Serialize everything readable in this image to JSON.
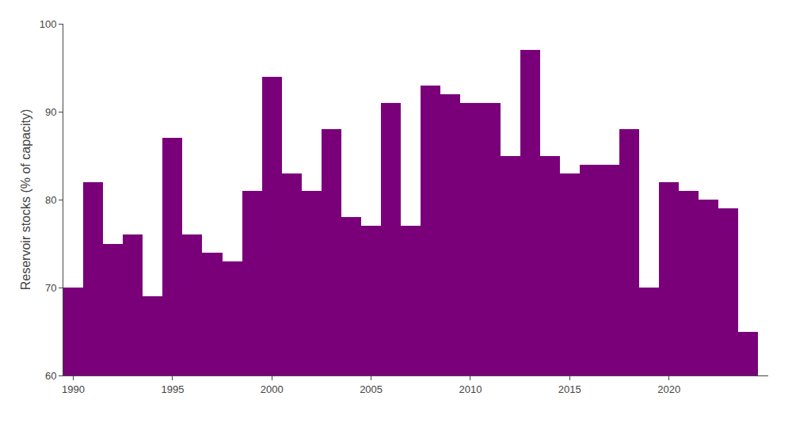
{
  "chart_data": {
    "type": "bar",
    "x": [
      1990,
      1991,
      1992,
      1993,
      1994,
      1995,
      1996,
      1997,
      1998,
      1999,
      2000,
      2001,
      2002,
      2003,
      2004,
      2005,
      2006,
      2007,
      2008,
      2009,
      2010,
      2011,
      2012,
      2013,
      2014,
      2015,
      2016,
      2017,
      2018,
      2019,
      2020,
      2021,
      2022,
      2023,
      2024
    ],
    "values": [
      70,
      82,
      75,
      76,
      69,
      87,
      76,
      74,
      73,
      81,
      94,
      83,
      81,
      88,
      78,
      77,
      91,
      77,
      93,
      92,
      91,
      91,
      85,
      97,
      85,
      83,
      84,
      84,
      88,
      70,
      82,
      81,
      80,
      79,
      65
    ],
    "color": "#7a007a",
    "ylabel": "Reservoir stocks (% of capacity)",
    "xlim": [
      1989.5,
      2025.0
    ],
    "xticks": [
      1990,
      1995,
      2000,
      2005,
      2010,
      2015,
      2020
    ],
    "ylim": [
      60,
      100
    ],
    "yticks": [
      60,
      70,
      80,
      90,
      100
    ],
    "grid": false
  }
}
